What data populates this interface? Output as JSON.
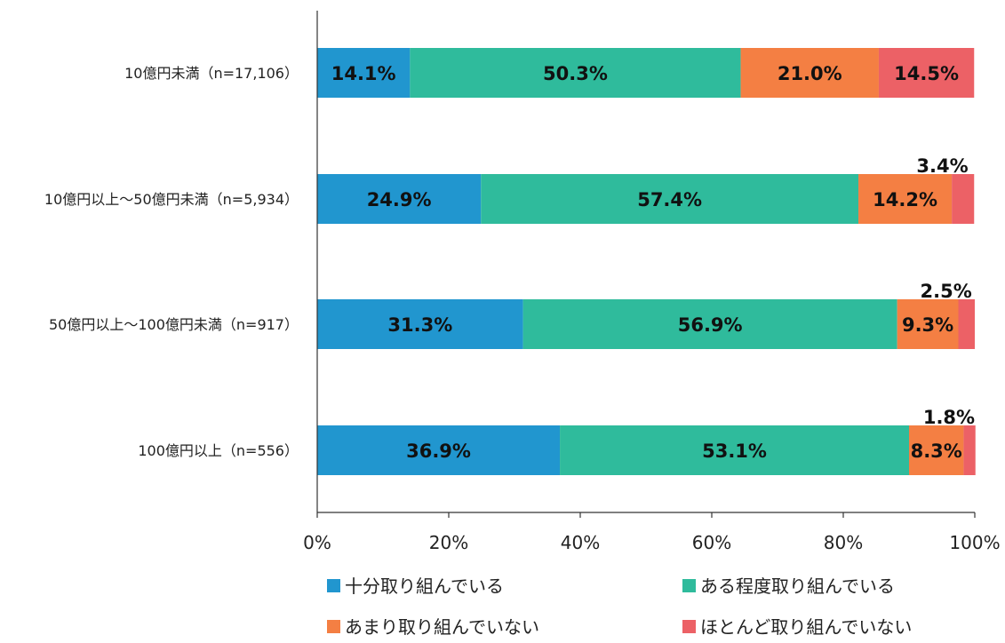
{
  "chart_data": {
    "type": "bar",
    "orientation": "horizontal",
    "stacked": true,
    "categories": [
      "10億円未満（n=17,106）",
      "10億円以上～50億円未満（n=5,934）",
      "50億円以上～100億円未満（n=917）",
      "100億円以上（n=556）"
    ],
    "series": [
      {
        "name": "十分取り組んでいる",
        "color": "#2196cf",
        "values": [
          14.1,
          24.9,
          31.3,
          36.9
        ]
      },
      {
        "name": "ある程度取り組んでいる",
        "color": "#2fbb9c",
        "values": [
          50.3,
          57.4,
          56.9,
          53.1
        ]
      },
      {
        "name": "あまり取り組んでいない",
        "color": "#f47f43",
        "values": [
          21.0,
          14.2,
          9.3,
          8.3
        ]
      },
      {
        "name": "ほとんど取り組んでいない",
        "color": "#ec6166",
        "values": [
          14.5,
          3.4,
          2.5,
          1.8
        ]
      }
    ],
    "xlim": [
      0,
      100
    ],
    "xticks": [
      "0%",
      "20%",
      "40%",
      "60%",
      "80%",
      "100%"
    ],
    "grid": false,
    "legend_position": "bottom"
  }
}
